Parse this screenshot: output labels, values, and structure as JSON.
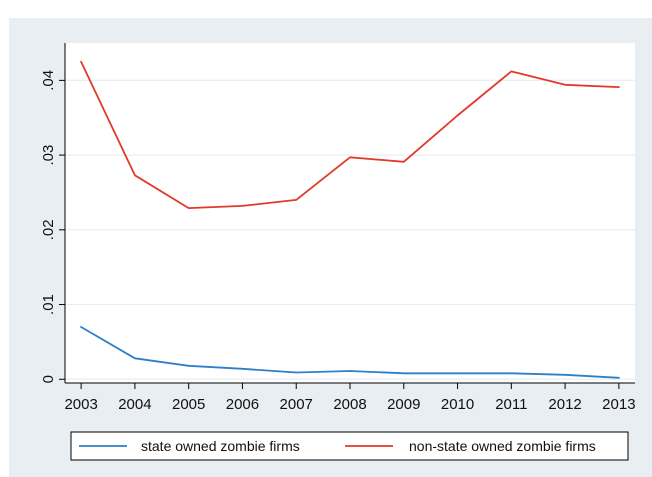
{
  "chart_data": {
    "type": "line",
    "title": "",
    "xlabel": "",
    "ylabel": "",
    "x": [
      2003,
      2004,
      2005,
      2006,
      2007,
      2008,
      2009,
      2010,
      2011,
      2012,
      2013
    ],
    "x_tick_labels": [
      "2003",
      "2004",
      "2005",
      "2006",
      "2007",
      "2008",
      "2009",
      "2010",
      "2011",
      "2012",
      "2013"
    ],
    "y_ticks": [
      0,
      0.01,
      0.02,
      0.03,
      0.04
    ],
    "y_tick_labels": [
      "0",
      ".01",
      ".02",
      ".03",
      ".04"
    ],
    "xlim": [
      2002.7,
      2013.3
    ],
    "ylim": [
      -0.0005,
      0.045
    ],
    "grid": true,
    "legend_position": "bottom",
    "series": [
      {
        "name": "state owned zombie firms",
        "color": "#2e7fc8",
        "values": [
          0.007,
          0.0028,
          0.0018,
          0.0014,
          0.0009,
          0.0011,
          0.0008,
          0.0008,
          0.0008,
          0.0006,
          0.0002
        ]
      },
      {
        "name": "non-state owned zombie firms",
        "color": "#e03a2a",
        "values": [
          0.0425,
          0.0273,
          0.0229,
          0.0232,
          0.024,
          0.0297,
          0.0291,
          0.0353,
          0.0412,
          0.0394,
          0.0391
        ]
      }
    ]
  },
  "colors": {
    "outer_background": "#e9eef3",
    "plot_background": "#ffffff",
    "gridline": "#e9eef3",
    "axis": "#000000"
  }
}
